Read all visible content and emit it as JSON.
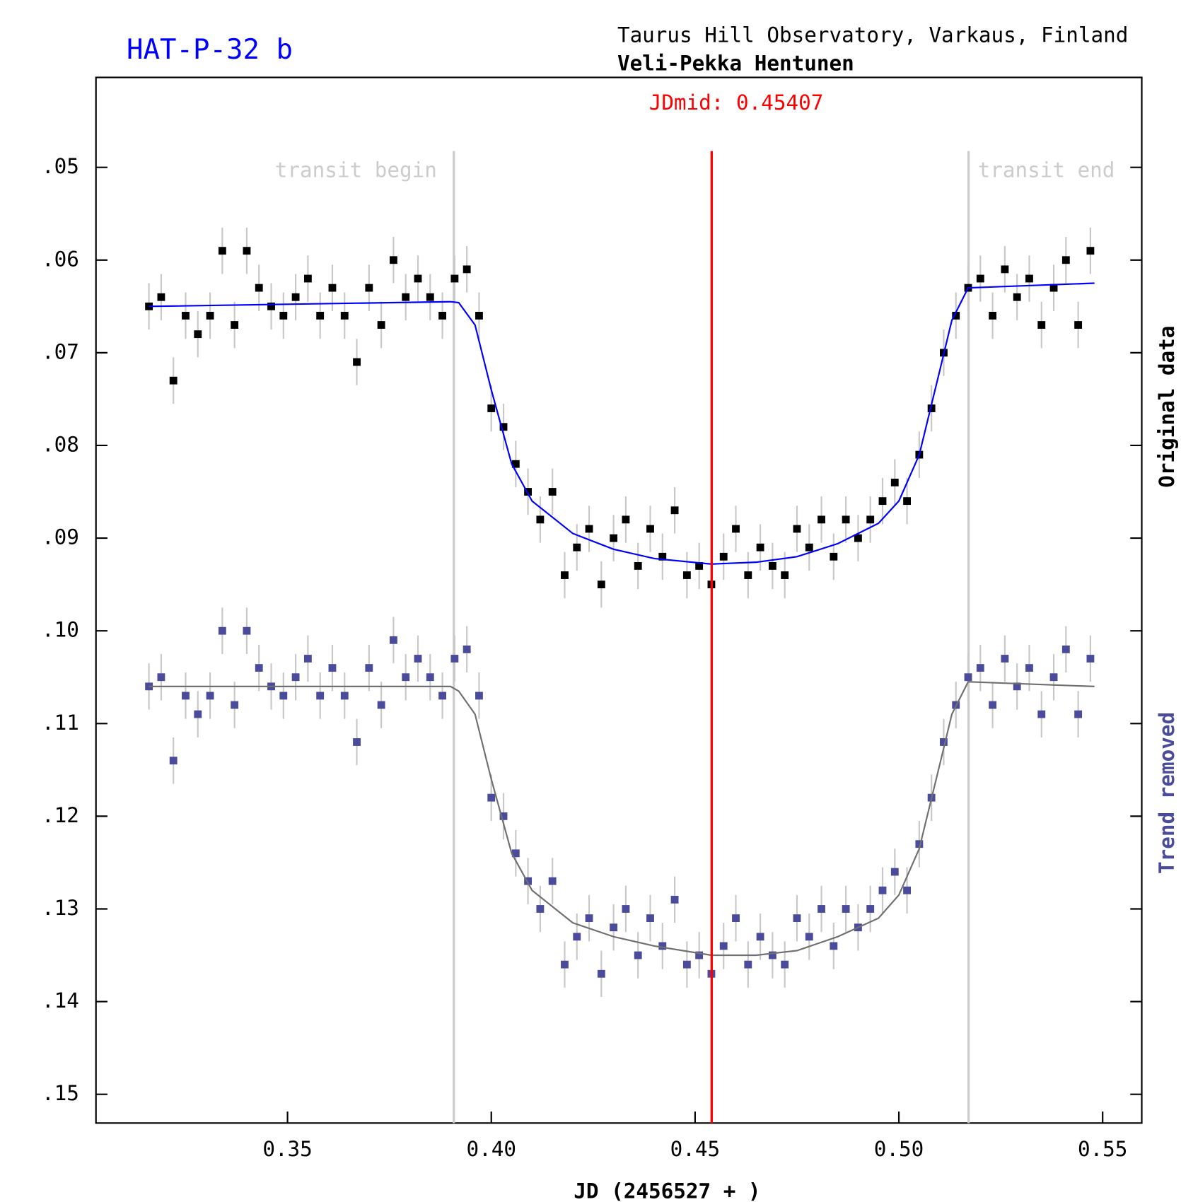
{
  "chart_data": {
    "type": "scatter",
    "title": "HAT-P-32 b",
    "subtitle": "Taurus Hill Observatory, Varkaus, Finland",
    "observer": "Veli-Pekka Hentunen",
    "xlabel": "JD (2456527 + )",
    "xlim": [
      0.303,
      0.5596
    ],
    "xticks": [
      0.35,
      {
        "value": 0.4,
        "label": "0.40"
      },
      0.45,
      {
        "value": 0.5,
        "label": "0.50"
      },
      0.55
    ],
    "ylim": [
      0.0403,
      0.1531
    ],
    "y_inverted": true,
    "yticks": [
      {
        "value": 0.05,
        "label": ".05"
      },
      {
        "value": 0.06,
        "label": ".06"
      },
      {
        "value": 0.07,
        "label": ".07"
      },
      {
        "value": 0.08,
        "label": ".08"
      },
      {
        "value": 0.09,
        "label": ".09"
      },
      {
        "value": 0.1,
        "label": ".10"
      },
      {
        "value": 0.11,
        "label": ".11"
      },
      {
        "value": 0.12,
        "label": ".12"
      },
      {
        "value": 0.13,
        "label": ".13"
      },
      {
        "value": 0.14,
        "label": ".14"
      },
      {
        "value": 0.15,
        "label": ".15"
      }
    ],
    "grid": false,
    "legend_position": "right",
    "midline": {
      "text": "JDmid: 0.45407",
      "x": 0.45407,
      "color": "#ff0000"
    },
    "annotations": [
      {
        "text": "transit begin",
        "x": 0.3908
      },
      {
        "text": "transit end",
        "x": 0.5171
      }
    ],
    "error": 0.0025,
    "x": [
      0.316,
      0.319,
      0.322,
      0.325,
      0.328,
      0.331,
      0.334,
      0.337,
      0.34,
      0.343,
      0.346,
      0.349,
      0.352,
      0.355,
      0.358,
      0.361,
      0.364,
      0.367,
      0.37,
      0.373,
      0.376,
      0.379,
      0.382,
      0.385,
      0.388,
      0.391,
      0.394,
      0.397,
      0.4,
      0.403,
      0.406,
      0.409,
      0.412,
      0.415,
      0.418,
      0.421,
      0.424,
      0.427,
      0.43,
      0.433,
      0.436,
      0.439,
      0.442,
      0.445,
      0.448,
      0.451,
      0.454,
      0.457,
      0.46,
      0.463,
      0.466,
      0.469,
      0.472,
      0.475,
      0.478,
      0.481,
      0.484,
      0.487,
      0.49,
      0.493,
      0.496,
      0.499,
      0.502,
      0.505,
      0.508,
      0.511,
      0.514,
      0.517,
      0.52,
      0.523,
      0.526,
      0.529,
      0.532,
      0.535,
      0.538,
      0.541,
      0.544,
      0.547
    ],
    "series": [
      {
        "name": "Original data",
        "color": "#000000",
        "values": [
          0.065,
          0.064,
          0.073,
          0.066,
          0.068,
          0.066,
          0.059,
          0.067,
          0.059,
          0.063,
          0.065,
          0.066,
          0.064,
          0.062,
          0.066,
          0.063,
          0.066,
          0.071,
          0.063,
          0.067,
          0.06,
          0.064,
          0.062,
          0.064,
          0.066,
          0.062,
          0.061,
          0.066,
          0.076,
          0.078,
          0.082,
          0.085,
          0.088,
          0.085,
          0.094,
          0.091,
          0.089,
          0.095,
          0.09,
          0.088,
          0.093,
          0.089,
          0.092,
          0.087,
          0.094,
          0.093,
          0.095,
          0.092,
          0.089,
          0.094,
          0.091,
          0.093,
          0.094,
          0.089,
          0.091,
          0.088,
          0.092,
          0.088,
          0.09,
          0.088,
          0.086,
          0.084,
          0.086,
          0.081,
          0.076,
          0.07,
          0.066,
          0.063,
          0.062,
          0.066,
          0.061,
          0.064,
          0.062,
          0.067,
          0.063,
          0.06,
          0.067,
          0.059
        ]
      },
      {
        "name": "Trend removed",
        "color": "#4b4b9b",
        "values": [
          0.106,
          0.105,
          0.114,
          0.107,
          0.109,
          0.107,
          0.1,
          0.108,
          0.1,
          0.104,
          0.106,
          0.107,
          0.105,
          0.103,
          0.107,
          0.104,
          0.107,
          0.112,
          0.104,
          0.108,
          0.101,
          0.105,
          0.103,
          0.105,
          0.107,
          0.103,
          0.102,
          0.107,
          0.118,
          0.12,
          0.124,
          0.127,
          0.13,
          0.127,
          0.136,
          0.133,
          0.131,
          0.137,
          0.132,
          0.13,
          0.135,
          0.131,
          0.134,
          0.129,
          0.136,
          0.135,
          0.137,
          0.134,
          0.131,
          0.136,
          0.133,
          0.135,
          0.136,
          0.131,
          0.133,
          0.13,
          0.134,
          0.13,
          0.132,
          0.13,
          0.128,
          0.126,
          0.128,
          0.123,
          0.118,
          0.112,
          0.108,
          0.105,
          0.104,
          0.108,
          0.103,
          0.106,
          0.104,
          0.109,
          0.105,
          0.102,
          0.109,
          0.103
        ]
      }
    ],
    "model": {
      "x": [
        0.316,
        0.39,
        0.392,
        0.396,
        0.4,
        0.405,
        0.41,
        0.42,
        0.43,
        0.44,
        0.454,
        0.465,
        0.475,
        0.485,
        0.495,
        0.5,
        0.505,
        0.51,
        0.513,
        0.517,
        0.548
      ],
      "series": [
        {
          "color": "#0000ff",
          "values": [
            0.065,
            0.0645,
            0.0646,
            0.067,
            0.074,
            0.082,
            0.086,
            0.0895,
            0.0912,
            0.0922,
            0.0928,
            0.0926,
            0.092,
            0.0906,
            0.0884,
            0.086,
            0.081,
            0.072,
            0.0665,
            0.063,
            0.0625
          ]
        },
        {
          "color": "#707070",
          "values": [
            0.106,
            0.106,
            0.1065,
            0.109,
            0.116,
            0.124,
            0.128,
            0.1315,
            0.133,
            0.134,
            0.135,
            0.135,
            0.1345,
            0.133,
            0.131,
            0.1285,
            0.1235,
            0.1145,
            0.109,
            0.1055,
            0.106
          ]
        }
      ]
    }
  }
}
